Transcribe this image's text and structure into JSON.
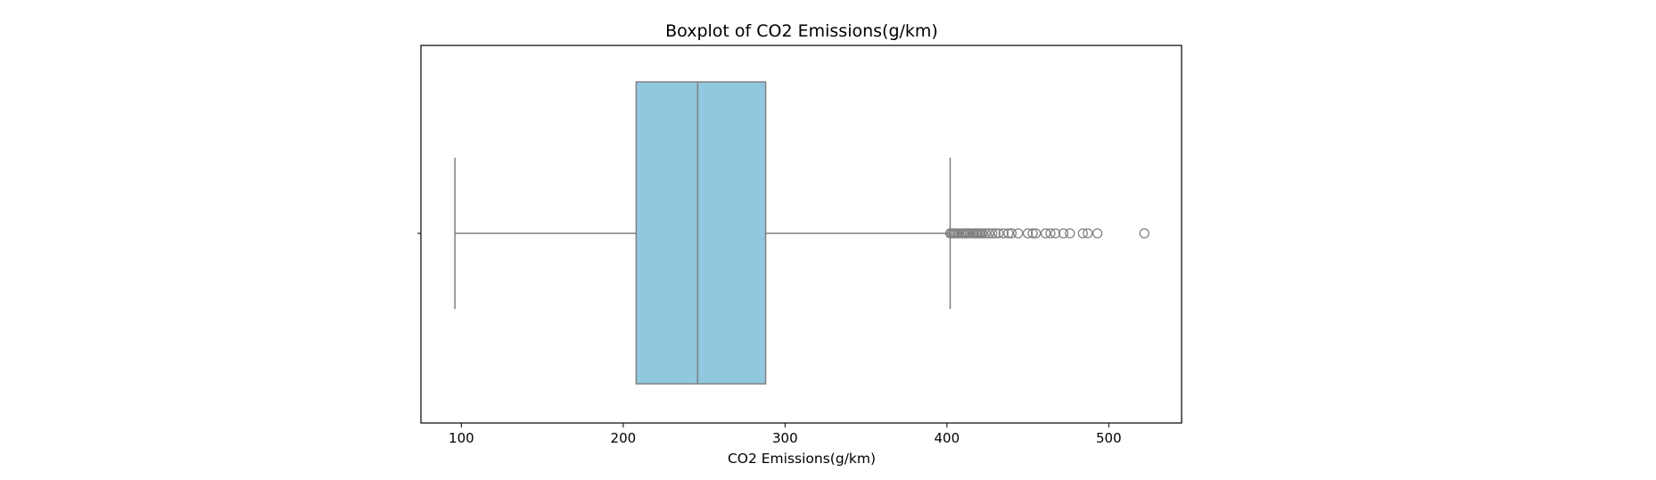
{
  "chart_data": {
    "type": "boxplot",
    "title": "Boxplot of CO2 Emissions(g/km)",
    "xlabel": "CO2 Emissions(g/km)",
    "ylabel": "",
    "xlim": [
      75,
      545
    ],
    "xticks": [
      100,
      200,
      300,
      400,
      500
    ],
    "orientation": "horizontal",
    "grid": false,
    "box": {
      "whisker_low": 96,
      "q1": 208,
      "median": 246,
      "q3": 288,
      "whisker_high": 402
    },
    "outliers": [
      402,
      403,
      404,
      405,
      406,
      407,
      409,
      410,
      411,
      412,
      413,
      414,
      416,
      417,
      418,
      419,
      420,
      421,
      422,
      424,
      426,
      428,
      430,
      432,
      435,
      438,
      440,
      444,
      450,
      453,
      455,
      461,
      464,
      467,
      472,
      476,
      484,
      487,
      493,
      522
    ],
    "colors": {
      "box_fill": "#92c7e0",
      "line": "#808080",
      "outlier_edge": "#808080"
    }
  }
}
